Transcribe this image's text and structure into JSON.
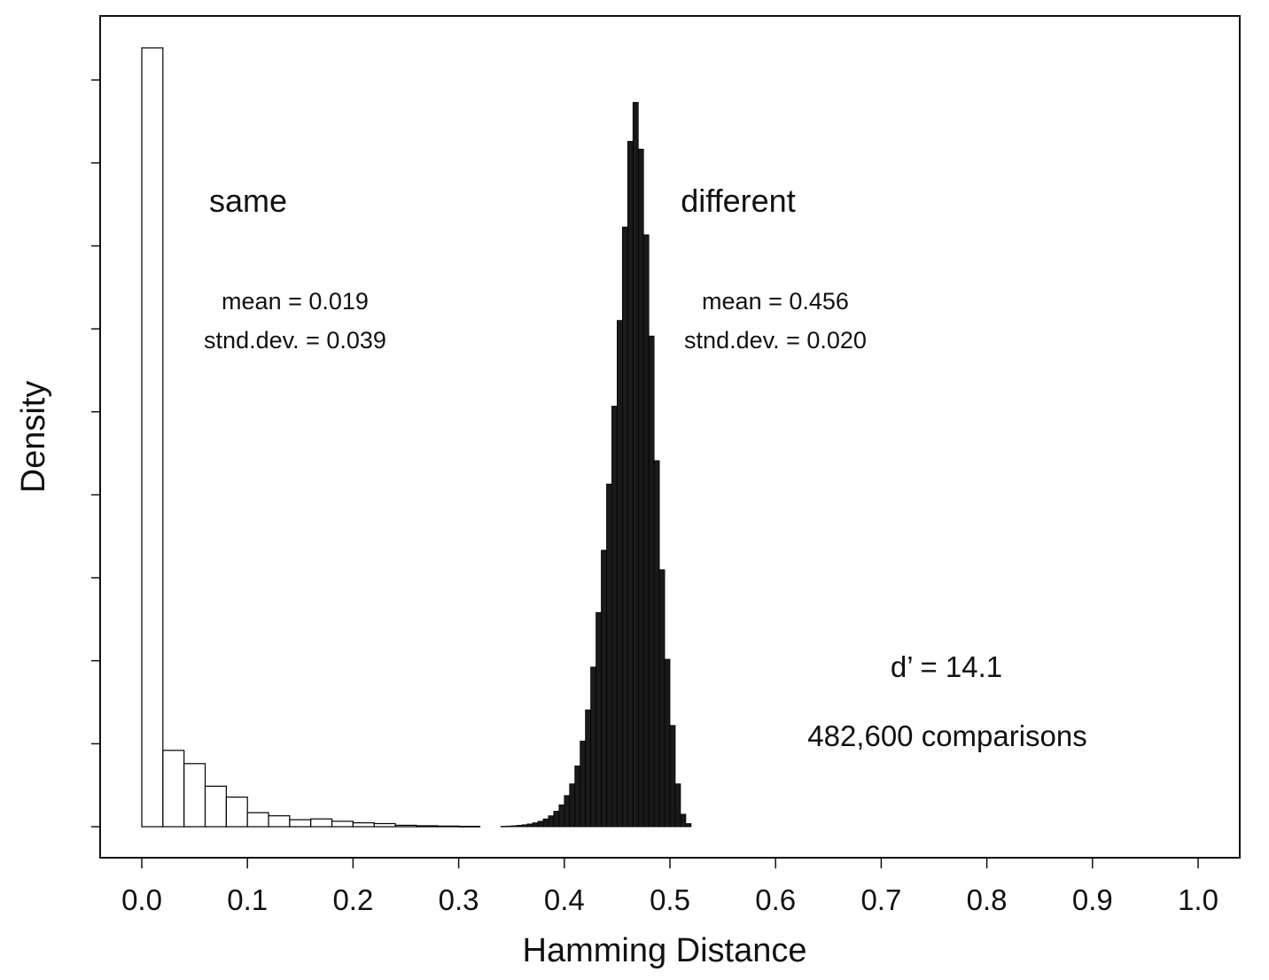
{
  "chart_data": {
    "type": "bar",
    "xlabel": "Hamming Distance",
    "ylabel": "Density",
    "xlim": [
      -0.04,
      1.04
    ],
    "ylim": [
      0,
      1.0
    ],
    "x_ticks": [
      "0.0",
      "0.1",
      "0.2",
      "0.3",
      "0.4",
      "0.5",
      "0.6",
      "0.7",
      "0.8",
      "0.9",
      "1.0"
    ],
    "y_tick_values": [
      0.0,
      0.1065,
      0.2131,
      0.3196,
      0.4261,
      0.5327,
      0.6392,
      0.7457,
      0.8523,
      0.9588
    ],
    "grid": false,
    "colors": {
      "same_fill": "#ffffff",
      "different_fill": "#1a1a1a",
      "edge": "#000000"
    },
    "series": [
      {
        "name": "same",
        "bin_width": 0.02,
        "x_start": [
          0.0,
          0.02,
          0.04,
          0.06,
          0.08,
          0.1,
          0.12,
          0.14,
          0.16,
          0.18,
          0.2,
          0.22,
          0.24,
          0.26,
          0.28,
          0.3
        ],
        "values": [
          1.0,
          0.098,
          0.081,
          0.052,
          0.038,
          0.018,
          0.014,
          0.009,
          0.01,
          0.007,
          0.005,
          0.004,
          0.0018,
          0.0012,
          0.0008,
          0.0005
        ]
      },
      {
        "name": "different",
        "bin_width": 0.005,
        "x_start": [
          0.34,
          0.345,
          0.35,
          0.355,
          0.36,
          0.365,
          0.37,
          0.375,
          0.38,
          0.385,
          0.39,
          0.395,
          0.4,
          0.405,
          0.41,
          0.415,
          0.42,
          0.425,
          0.43,
          0.435,
          0.44,
          0.445,
          0.45,
          0.455,
          0.46,
          0.465,
          0.47,
          0.475,
          0.48,
          0.485,
          0.49,
          0.495,
          0.5,
          0.505,
          0.51,
          0.515
        ],
        "values": [
          0.0005,
          0.0008,
          0.0012,
          0.0018,
          0.0025,
          0.0035,
          0.005,
          0.007,
          0.01,
          0.014,
          0.02,
          0.028,
          0.04,
          0.055,
          0.078,
          0.11,
          0.15,
          0.205,
          0.275,
          0.355,
          0.44,
          0.54,
          0.65,
          0.77,
          0.88,
          0.93,
          0.87,
          0.76,
          0.63,
          0.47,
          0.33,
          0.215,
          0.13,
          0.055,
          0.016,
          0.004
        ]
      }
    ],
    "annotations": {
      "same_label": "same",
      "same_mean": "mean = 0.019",
      "same_sd": "stnd.dev. = 0.039",
      "diff_label": "different",
      "diff_mean": "mean = 0.456",
      "diff_sd": "stnd.dev. = 0.020",
      "dprime": "d’ = 14.1",
      "comparisons": "482,600 comparisons"
    }
  }
}
